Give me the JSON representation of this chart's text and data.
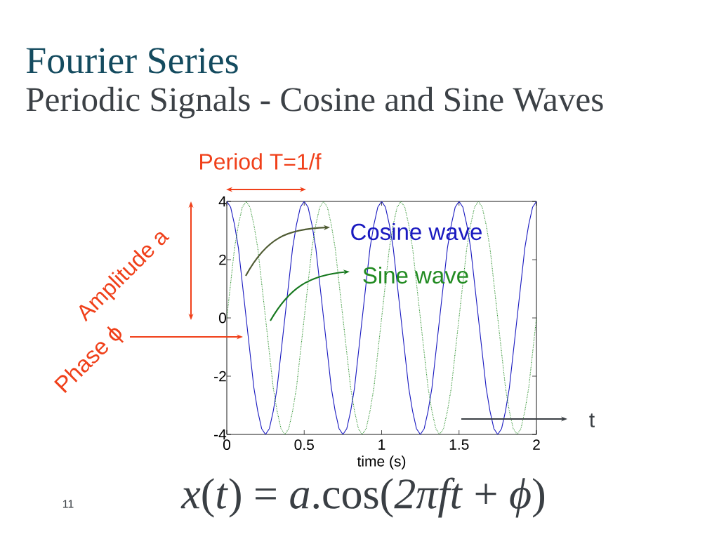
{
  "chart_data": {
    "type": "line",
    "title": "Fourier Series",
    "subtitle": "Periodic Signals - Cosine and Sine Waves",
    "xlabel": "time (s)",
    "xlim": [
      0,
      2
    ],
    "ylim": [
      -4,
      4
    ],
    "xticks": [
      0,
      0.5,
      1,
      1.5,
      2
    ],
    "yticks": [
      -4,
      -2,
      0,
      2,
      4
    ],
    "x": [
      0,
      0.025,
      0.05,
      0.075,
      0.1,
      0.125,
      0.15,
      0.175,
      0.2,
      0.225,
      0.25,
      0.275,
      0.3,
      0.325,
      0.35,
      0.375,
      0.4,
      0.425,
      0.45,
      0.475,
      0.5,
      0.525,
      0.55,
      0.575,
      0.6,
      0.625,
      0.65,
      0.675,
      0.7,
      0.725,
      0.75,
      0.775,
      0.8,
      0.825,
      0.85,
      0.875,
      0.9,
      0.925,
      0.95,
      0.975,
      1,
      1.025,
      1.05,
      1.075,
      1.1,
      1.125,
      1.15,
      1.175,
      1.2,
      1.225,
      1.25,
      1.275,
      1.3,
      1.325,
      1.35,
      1.375,
      1.4,
      1.425,
      1.45,
      1.475,
      1.5,
      1.525,
      1.55,
      1.575,
      1.6,
      1.625,
      1.65,
      1.675,
      1.7,
      1.725,
      1.75,
      1.775,
      1.8,
      1.825,
      1.85,
      1.875,
      1.9,
      1.925,
      1.95,
      1.975,
      2
    ],
    "series": [
      {
        "name": "Cosine wave",
        "color": "#1a1ac0",
        "line_style": "solid",
        "values": [
          4,
          3.8,
          3.2,
          2.4,
          1.2,
          0,
          -1.2,
          -2.4,
          -3.2,
          -3.8,
          -4,
          -3.8,
          -3.2,
          -2.4,
          -1.2,
          0,
          1.2,
          2.4,
          3.2,
          3.8,
          4,
          3.8,
          3.2,
          2.4,
          1.2,
          0,
          -1.2,
          -2.4,
          -3.2,
          -3.8,
          -4,
          -3.8,
          -3.2,
          -2.4,
          -1.2,
          0,
          1.2,
          2.4,
          3.2,
          3.8,
          4,
          3.8,
          3.2,
          2.4,
          1.2,
          0,
          -1.2,
          -2.4,
          -3.2,
          -3.8,
          -4,
          -3.8,
          -3.2,
          -2.4,
          -1.2,
          0,
          1.2,
          2.4,
          3.2,
          3.8,
          4,
          3.8,
          3.2,
          2.4,
          1.2,
          0,
          -1.2,
          -2.4,
          -3.2,
          -3.8,
          -4,
          -3.8,
          -3.2,
          -2.4,
          -1.2,
          0,
          1.2,
          2.4,
          3.2,
          3.8,
          4
        ]
      },
      {
        "name": "Sine wave",
        "color": "#228b22",
        "line_style": "dotted",
        "values": [
          0,
          1.2,
          2.4,
          3.2,
          3.8,
          4,
          3.8,
          3.2,
          2.4,
          1.2,
          0,
          -1.2,
          -2.4,
          -3.2,
          -3.8,
          -4,
          -3.8,
          -3.2,
          -2.4,
          -1.2,
          0,
          1.2,
          2.4,
          3.2,
          3.8,
          4,
          3.8,
          3.2,
          2.4,
          1.2,
          0,
          -1.2,
          -2.4,
          -3.2,
          -3.8,
          -4,
          -3.8,
          -3.2,
          -2.4,
          -1.2,
          0,
          1.2,
          2.4,
          3.2,
          3.8,
          4,
          3.8,
          3.2,
          2.4,
          1.2,
          0,
          -1.2,
          -2.4,
          -3.2,
          -3.8,
          -4,
          -3.8,
          -3.2,
          -2.4,
          -1.2,
          0,
          1.2,
          2.4,
          3.2,
          3.8,
          4,
          3.8,
          3.2,
          2.4,
          1.2,
          0,
          -1.2,
          -2.4,
          -3.2,
          -3.8,
          -4,
          -3.8,
          -3.2,
          -2.4,
          -1.2,
          0
        ]
      }
    ],
    "annotations": [
      "Period T=1/f",
      "Amplitude a",
      "Phase ϕ",
      "t",
      "*x*(*t*) = *a*.cos(*2πft* + *ϕ*)",
      "11"
    ]
  }
}
